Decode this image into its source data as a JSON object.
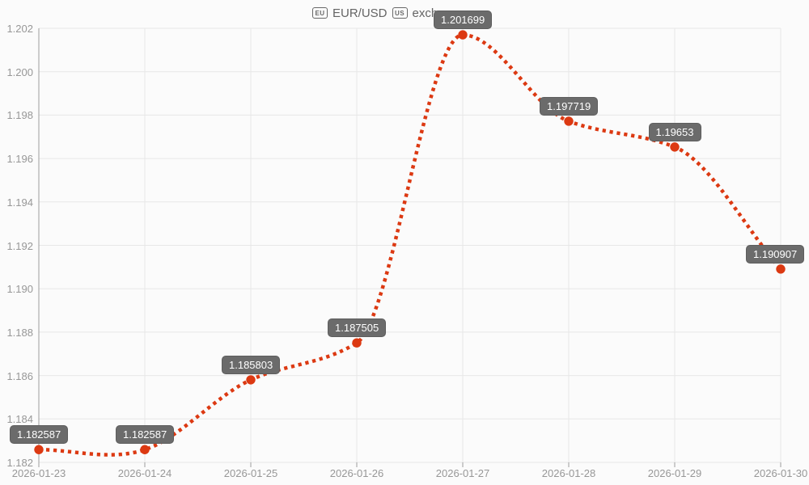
{
  "header": {
    "flag_left": "EU",
    "title": "EUR/USD",
    "flag_right": "US",
    "title_tail": "exch"
  },
  "chart_data": {
    "type": "line",
    "title_visible": "EU EUR/USD US exch",
    "x": [
      "2026-01-23",
      "2026-01-24",
      "2026-01-25",
      "2026-01-26",
      "2026-01-27",
      "2026-01-28",
      "2026-01-29",
      "2026-01-30"
    ],
    "series": [
      {
        "name": "EUR/USD",
        "values": [
          1.182587,
          1.182587,
          1.185803,
          1.187505,
          1.201699,
          1.197719,
          1.19653,
          1.190907
        ]
      }
    ],
    "point_labels": [
      "1.182587",
      "1.182587",
      "1.185803",
      "1.187505",
      "1.201699",
      "1.197719",
      "1.19653",
      "1.190907"
    ],
    "yticks": [
      "1.202",
      "1.200",
      "1.198",
      "1.196",
      "1.194",
      "1.192",
      "1.190",
      "1.188",
      "1.186",
      "1.184",
      "1.182"
    ],
    "ylim": [
      1.182,
      1.202
    ],
    "grid": true,
    "legend": "none",
    "line_style": "dotted",
    "smooth": true,
    "colors": {
      "line": "#dc3912",
      "point": "#dc3912",
      "annotation_bg": "#6b6b6b",
      "annotation_text": "#ffffff",
      "grid": "#e7e7e7",
      "axis_line": "#9e9e9e",
      "tick_label": "#979797",
      "title_text": "#646464",
      "background": "#fbfbfb"
    }
  }
}
